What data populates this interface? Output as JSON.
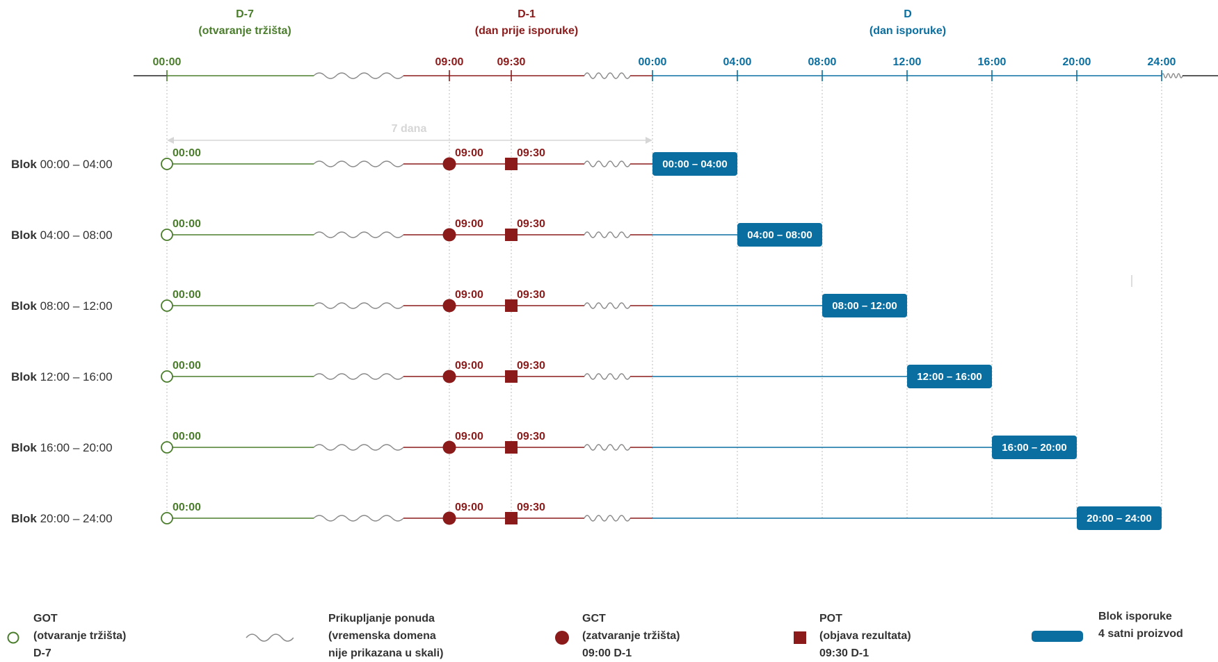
{
  "colors": {
    "green": "#4a7d2b",
    "red": "#8b1a1a",
    "blue": "#0a6fa0",
    "wave": "#8a8a8a",
    "grid": "#bbbbbb",
    "span_arrow": "#d6d6d6"
  },
  "headers": [
    {
      "id": "d7",
      "line1": "D-7",
      "line2": "(otvaranje tržišta)",
      "color": "green"
    },
    {
      "id": "d1",
      "line1": "D-1",
      "line2": "(dan prije isporuke)",
      "color": "red"
    },
    {
      "id": "d",
      "line1": "D",
      "line2": "(dan isporuke)",
      "color": "blue"
    }
  ],
  "axis_ticks": [
    {
      "key": "open",
      "label": "00:00",
      "color": "green"
    },
    {
      "key": "gct",
      "label": "09:00",
      "color": "red"
    },
    {
      "key": "pot",
      "label": "09:30",
      "color": "red"
    },
    {
      "key": "d0",
      "label": "00:00",
      "color": "blue"
    },
    {
      "key": "d4",
      "label": "04:00",
      "color": "blue"
    },
    {
      "key": "d8",
      "label": "08:00",
      "color": "blue"
    },
    {
      "key": "d12",
      "label": "12:00",
      "color": "blue"
    },
    {
      "key": "d16",
      "label": "16:00",
      "color": "blue"
    },
    {
      "key": "d20",
      "label": "20:00",
      "color": "blue"
    },
    {
      "key": "d24",
      "label": "24:00",
      "color": "blue"
    }
  ],
  "span_label": "7 dana",
  "block_prefix": "Blok",
  "rows": [
    {
      "name": "00:00 – 04:00",
      "start": "d0",
      "end": "d4",
      "box_label": "00:00 – 04:00"
    },
    {
      "name": "04:00 – 08:00",
      "start": "d4",
      "end": "d8",
      "box_label": "04:00 – 08:00"
    },
    {
      "name": "08:00 – 12:00",
      "start": "d8",
      "end": "d12",
      "box_label": "08:00 – 12:00"
    },
    {
      "name": "12:00 – 16:00",
      "start": "d12",
      "end": "d16",
      "box_label": "12:00 – 16:00"
    },
    {
      "name": "16:00 – 20:00",
      "start": "d16",
      "end": "d20",
      "box_label": "16:00 – 20:00"
    },
    {
      "name": "20:00 – 24:00",
      "start": "d20",
      "end": "d24",
      "box_label": "20:00 – 24:00"
    }
  ],
  "row_marker_labels": {
    "open": "00:00",
    "gct": "09:00",
    "pot": "09:30"
  },
  "legend": {
    "got": {
      "lines": [
        "GOT",
        "(otvaranje tržišta)",
        "D-7"
      ]
    },
    "wave": {
      "lines": [
        "Prikupljanje ponuda",
        "(vremenska domena",
        "nije prikazana u skali)"
      ]
    },
    "gct": {
      "lines": [
        "GCT",
        "(zatvaranje tržišta)",
        "09:00 D-1"
      ]
    },
    "pot": {
      "lines": [
        "POT",
        "(objava rezultata)",
        "09:30 D-1"
      ]
    },
    "block": {
      "lines": [
        "Blok isporuke",
        "4 satni proizvod"
      ]
    }
  }
}
